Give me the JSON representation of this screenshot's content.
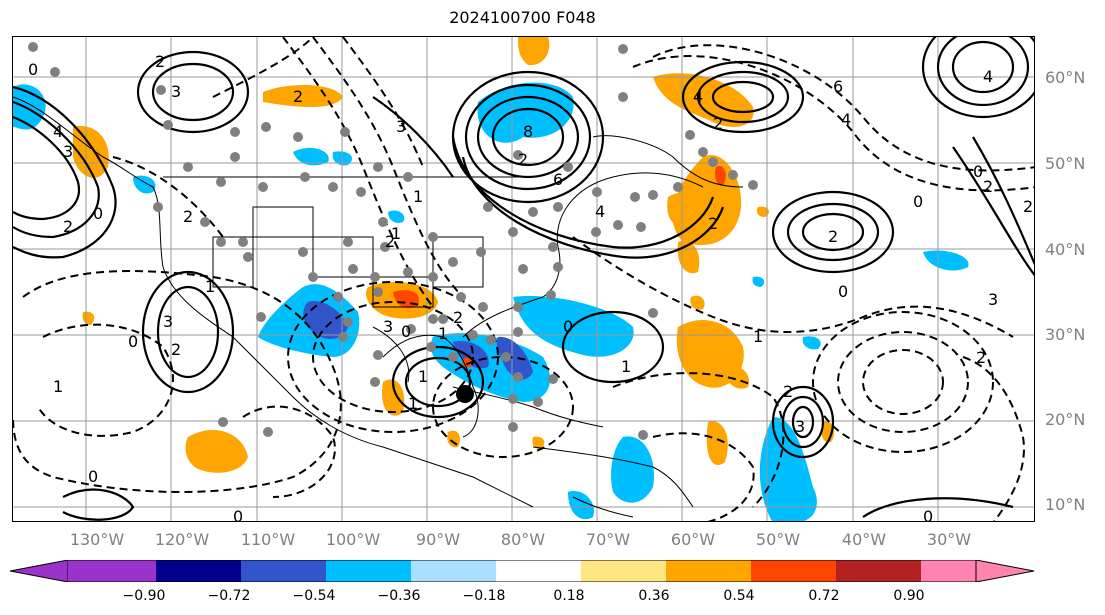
{
  "title": "2024100700 F048",
  "lat_labels": [
    "60°N",
    "50°N",
    "40°N",
    "30°N",
    "20°N",
    "10°N"
  ],
  "lon_labels": [
    "130°W",
    "120°W",
    "110°W",
    "100°W",
    "90°W",
    "80°W",
    "70°W",
    "60°W",
    "50°W",
    "40°W",
    "30°W"
  ],
  "colorbar": {
    "ticks": [
      "−0.90",
      "−0.72",
      "−0.54",
      "−0.36",
      "−0.18",
      "0.18",
      "0.36",
      "0.54",
      "0.72",
      "0.90"
    ],
    "colors": [
      "#9933cc",
      "#00008b",
      "#3355cc",
      "#00bfff",
      "#aadfff",
      "#ffffff",
      "#ffe680",
      "#ffa500",
      "#ff4500",
      "#b22222",
      "#ff85b0"
    ]
  },
  "contour_labels": [
    "0",
    "2",
    "3",
    "0",
    "2",
    "4",
    "3",
    "2",
    "1",
    "0",
    "1",
    "2",
    "3",
    "2",
    "3",
    "1",
    "2",
    "3",
    "1",
    "0",
    "1",
    "1",
    "2",
    "0",
    "1",
    "0",
    "2",
    "4",
    "6",
    "8",
    "2",
    "1",
    "6",
    "4",
    "2",
    "4",
    "2",
    "0",
    "3",
    "2",
    "3",
    "2",
    "4",
    "2",
    "0",
    "2",
    "1",
    "0",
    "0",
    "0"
  ],
  "colors": {
    "positive_contour": "#000000",
    "negative_contour": "#000000",
    "dot": "#808080",
    "marker": "#000000"
  }
}
